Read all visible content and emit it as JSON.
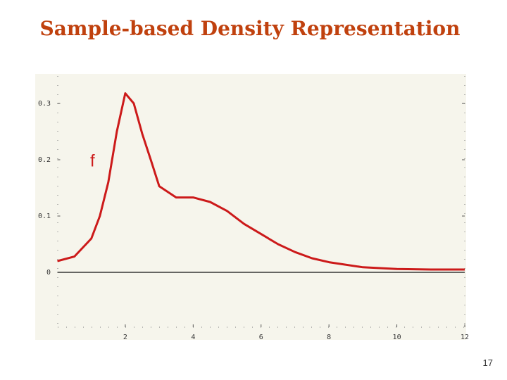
{
  "chart_data": {
    "type": "line",
    "title": "Sample-based Density Representation",
    "annotation": "f",
    "page_number": "17",
    "x": [
      0,
      0.5,
      1,
      1.25,
      1.5,
      1.75,
      2,
      2.25,
      2.5,
      2.75,
      3,
      3.5,
      4,
      4.5,
      5,
      5.5,
      6,
      6.5,
      7,
      7.5,
      8,
      9,
      10,
      11,
      12
    ],
    "values": [
      0.02,
      0.028,
      0.06,
      0.1,
      0.16,
      0.25,
      0.318,
      0.3,
      0.246,
      0.2,
      0.153,
      0.133,
      0.133,
      0.125,
      0.109,
      0.086,
      0.068,
      0.05,
      0.036,
      0.025,
      0.018,
      0.009,
      0.006,
      0.005,
      0.005
    ],
    "color": "#cc1a1a",
    "xlim": [
      0,
      12
    ],
    "xticks": [
      2,
      4,
      6,
      8,
      10,
      12
    ],
    "ylim": [
      -0.1,
      0.35
    ],
    "yticks": [
      0,
      0.1,
      0.2,
      0.3
    ]
  }
}
